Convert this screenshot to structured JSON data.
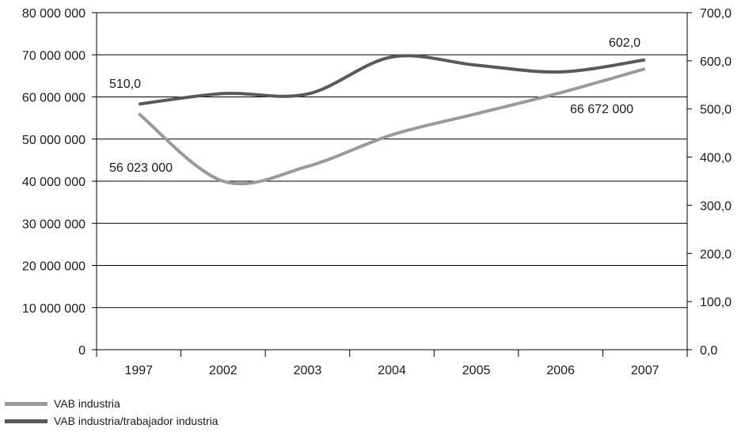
{
  "chart_data": {
    "type": "line",
    "categories": [
      "1997",
      "2002",
      "2003",
      "2004",
      "2005",
      "2006",
      "2007"
    ],
    "left_axis": {
      "ylim": [
        0,
        80000000
      ],
      "ticks": [
        0,
        10000000,
        20000000,
        30000000,
        40000000,
        50000000,
        60000000,
        70000000,
        80000000
      ],
      "tick_labels": [
        "0",
        "10 000 000",
        "20 000 000",
        "30 000 000",
        "40 000 000",
        "50 000 000",
        "60 000 000",
        "70 000 000",
        "80 000 000"
      ]
    },
    "right_axis": {
      "ylim": [
        0,
        700
      ],
      "ticks": [
        0,
        100,
        200,
        300,
        400,
        500,
        600,
        700
      ],
      "tick_labels": [
        "0,0",
        "100,0",
        "200,0",
        "300,0",
        "400,0",
        "500,0",
        "600,0",
        "700,0"
      ]
    },
    "series": [
      {
        "name": "VAB industria",
        "axis": "left",
        "color": "#9a9a9a",
        "values": [
          56023000,
          40000000,
          43500000,
          51000000,
          56000000,
          61000000,
          66672000
        ]
      },
      {
        "name": "VAB industria/trabajador industria",
        "axis": "right",
        "color": "#595959",
        "values": [
          510.0,
          532.0,
          531.0,
          608.0,
          591.0,
          577.0,
          602.0
        ]
      }
    ],
    "annotations": {
      "first_left": "56 023 000",
      "last_left": "66 672 000",
      "first_right": "510,0",
      "last_right": "602,0"
    },
    "grid": "horizontal",
    "legend_position": "bottom-left"
  }
}
